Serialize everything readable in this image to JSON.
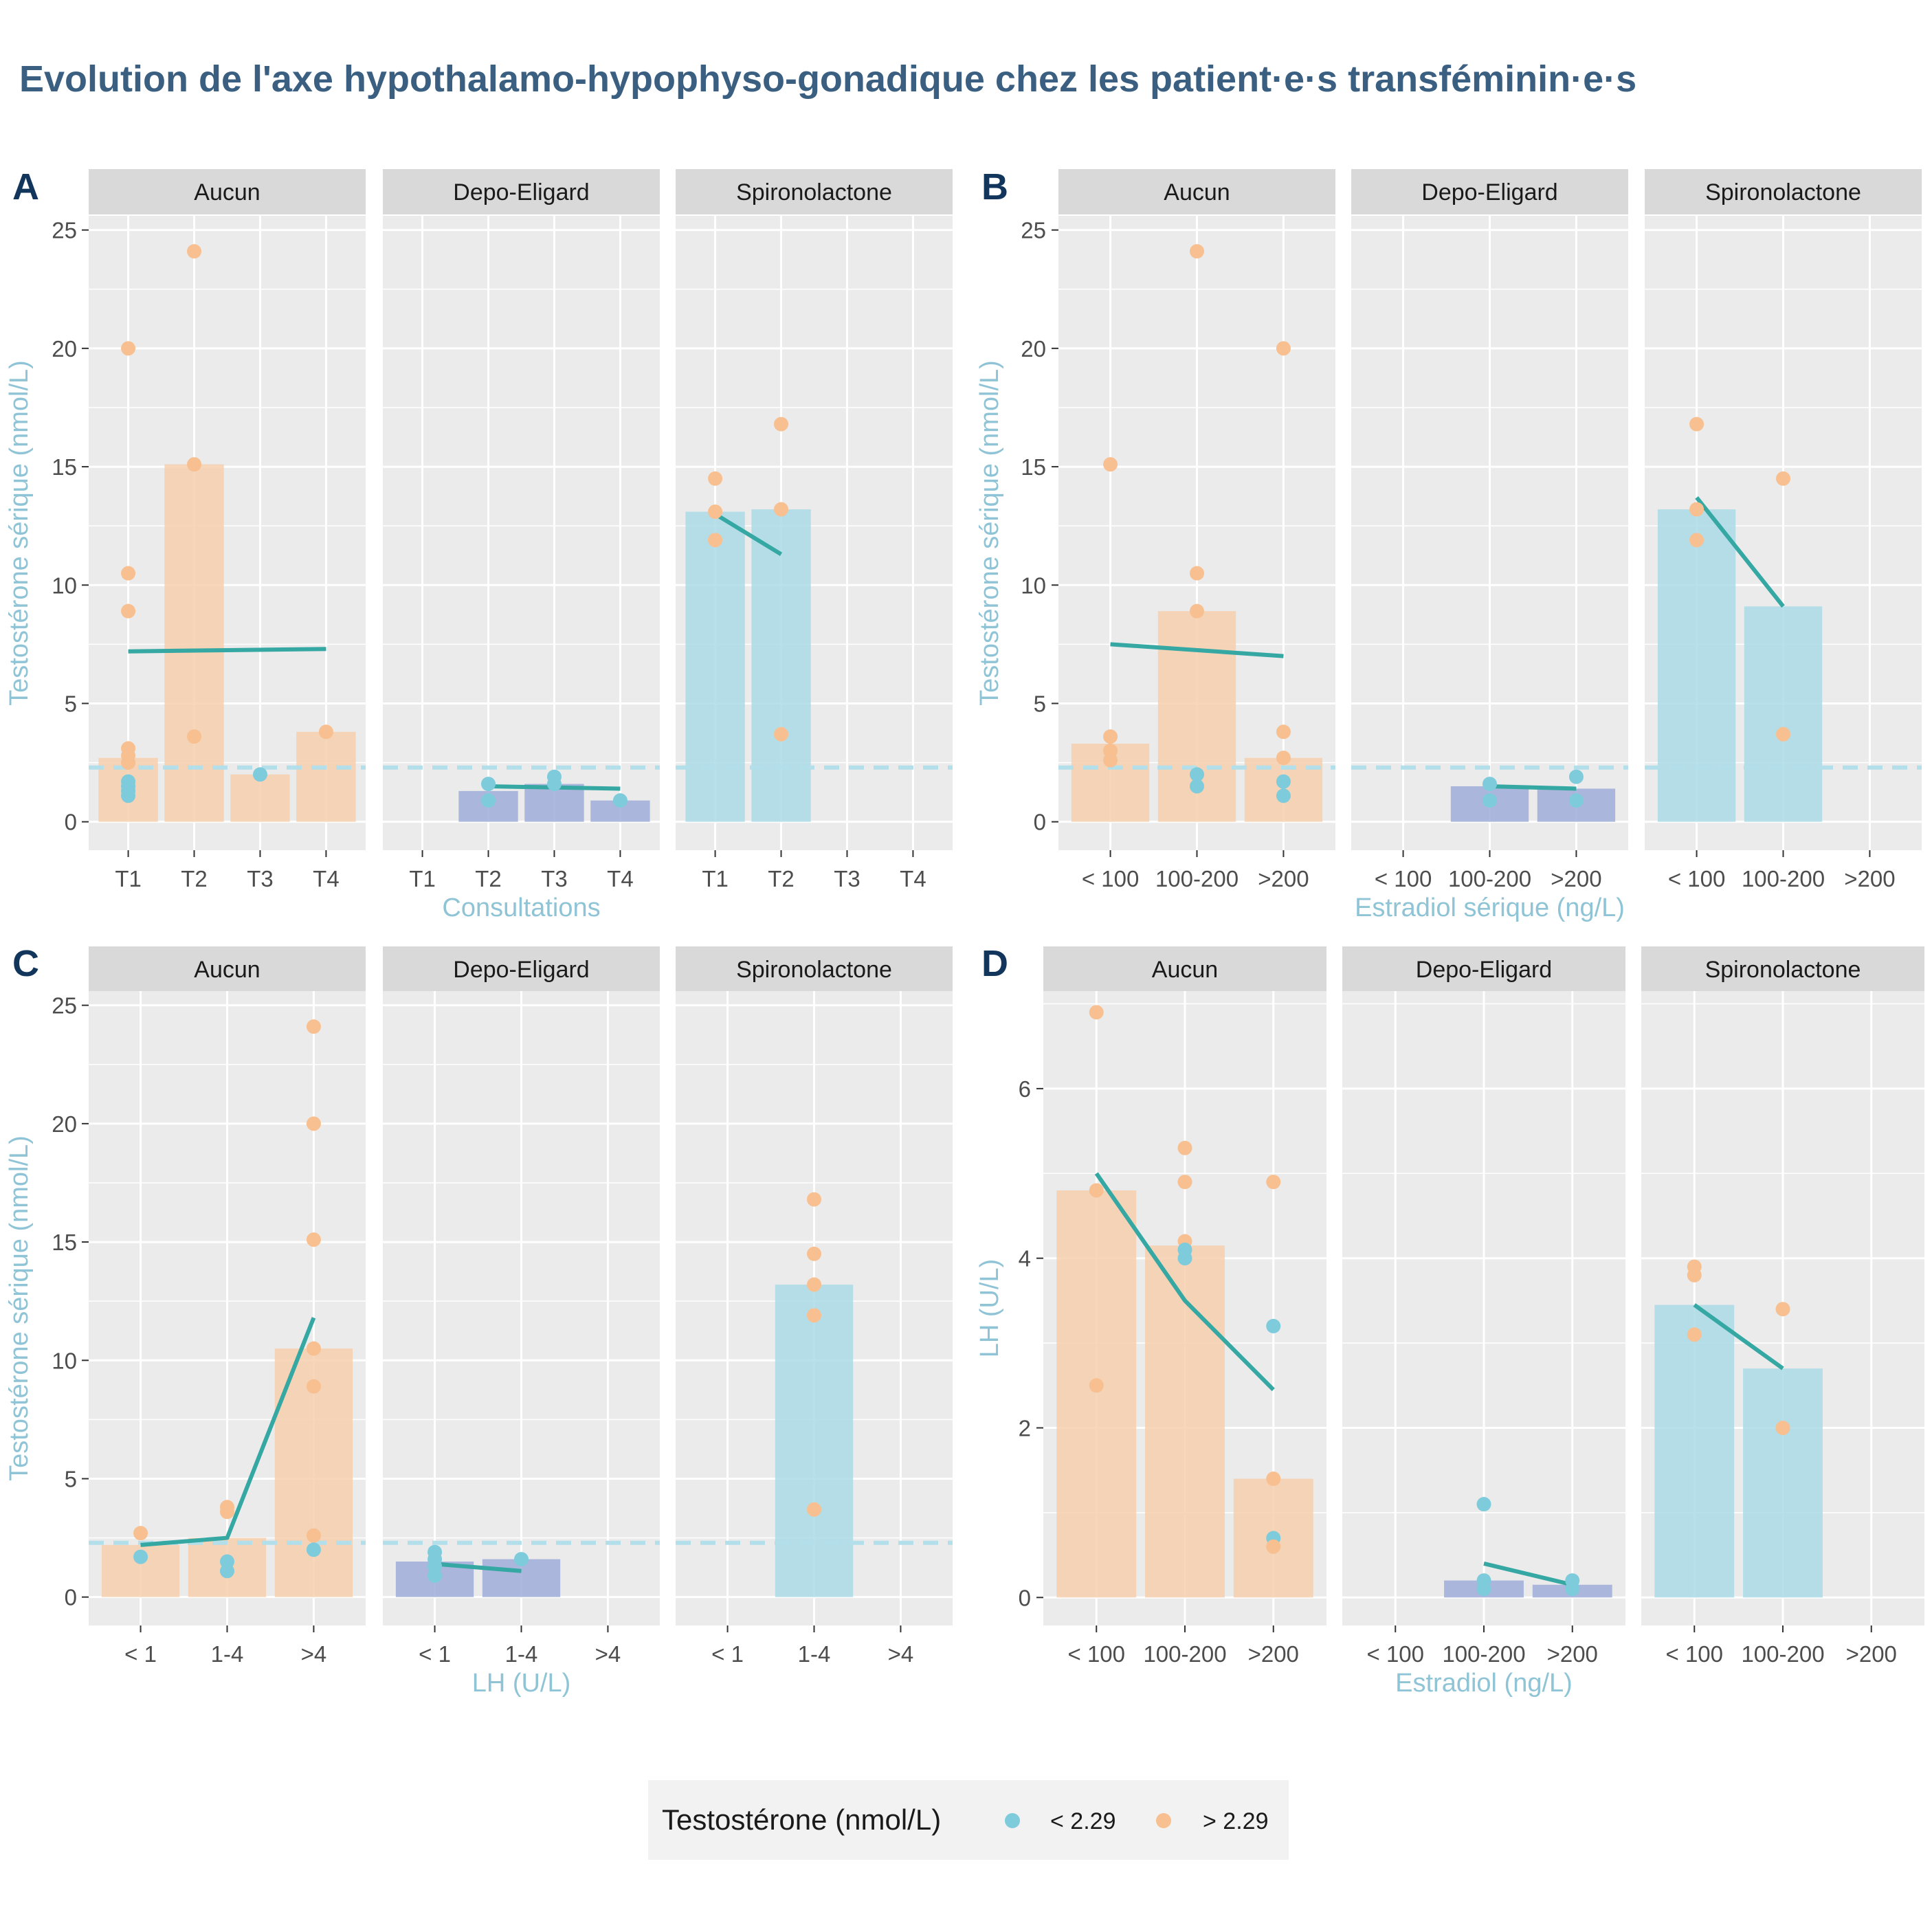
{
  "title": "Evolution de l'axe hypothalamo-hypophyso-gonadique chez les patient·e·s transféminin·e·s",
  "colors": {
    "low": "#7ecbdc",
    "high": "#f8c090",
    "bar_none": "#f6cfae",
    "bar_depo": "#9fadd8",
    "bar_spiro": "#abdae6",
    "trend": "#35a8a3",
    "threshold": "#b2dfe9",
    "panel_bg": "#ebebeb",
    "strip_bg": "#d9d9d9",
    "title": "#3a5f80",
    "axis_title": "#8fc4d6"
  },
  "legend": {
    "title": "Testostérone (nmol/L)",
    "items": [
      {
        "label": "< 2.29",
        "color": "#7ecbdc"
      },
      {
        "label": "> 2.29",
        "color": "#f8c090"
      }
    ]
  },
  "chart_data": [
    {
      "id": "A",
      "letter": "A",
      "type": "bar+scatter+line",
      "xlabel": "Consultations",
      "ylabel": "Testostérone sérique (nmol/L)",
      "categories": [
        "T1",
        "T2",
        "T3",
        "T4"
      ],
      "ylim": [
        -1.2,
        25.6
      ],
      "yticks": [
        0,
        5,
        10,
        15,
        20,
        25
      ],
      "threshold": 2.29,
      "facets": [
        {
          "name": "Aucun",
          "bars": [
            {
              "x": "T1",
              "value": 2.7
            },
            {
              "x": "T2",
              "value": 15.1
            },
            {
              "x": "T3",
              "value": 2.0
            },
            {
              "x": "T4",
              "value": 3.8
            }
          ],
          "points": [
            {
              "x": "T1",
              "y": 20.0,
              "group": "high"
            },
            {
              "x": "T1",
              "y": 10.5,
              "group": "high"
            },
            {
              "x": "T1",
              "y": 8.9,
              "group": "high"
            },
            {
              "x": "T1",
              "y": 3.1,
              "group": "high"
            },
            {
              "x": "T1",
              "y": 2.8,
              "group": "high"
            },
            {
              "x": "T1",
              "y": 2.5,
              "group": "high"
            },
            {
              "x": "T1",
              "y": 1.7,
              "group": "low"
            },
            {
              "x": "T1",
              "y": 1.5,
              "group": "low"
            },
            {
              "x": "T1",
              "y": 1.3,
              "group": "low"
            },
            {
              "x": "T1",
              "y": 1.1,
              "group": "low"
            },
            {
              "x": "T2",
              "y": 24.1,
              "group": "high"
            },
            {
              "x": "T2",
              "y": 15.1,
              "group": "high"
            },
            {
              "x": "T2",
              "y": 3.6,
              "group": "high"
            },
            {
              "x": "T3",
              "y": 2.0,
              "group": "low"
            },
            {
              "x": "T4",
              "y": 3.8,
              "group": "high"
            }
          ],
          "trend": [
            {
              "x": "T1",
              "y": 7.2
            },
            {
              "x": "T4",
              "y": 7.3
            }
          ]
        },
        {
          "name": "Depo-Eligard",
          "bars": [
            {
              "x": "T2",
              "value": 1.3
            },
            {
              "x": "T3",
              "value": 1.6
            },
            {
              "x": "T4",
              "value": 0.9
            }
          ],
          "points": [
            {
              "x": "T2",
              "y": 1.6,
              "group": "low"
            },
            {
              "x": "T2",
              "y": 0.9,
              "group": "low"
            },
            {
              "x": "T3",
              "y": 1.9,
              "group": "low"
            },
            {
              "x": "T3",
              "y": 1.6,
              "group": "low"
            },
            {
              "x": "T4",
              "y": 0.9,
              "group": "low"
            }
          ],
          "trend": [
            {
              "x": "T2",
              "y": 1.5
            },
            {
              "x": "T4",
              "y": 1.4
            }
          ]
        },
        {
          "name": "Spironolactone",
          "bars": [
            {
              "x": "T1",
              "value": 13.1
            },
            {
              "x": "T2",
              "value": 13.2
            }
          ],
          "points": [
            {
              "x": "T1",
              "y": 14.5,
              "group": "high"
            },
            {
              "x": "T1",
              "y": 13.1,
              "group": "high"
            },
            {
              "x": "T1",
              "y": 11.9,
              "group": "high"
            },
            {
              "x": "T2",
              "y": 16.8,
              "group": "high"
            },
            {
              "x": "T2",
              "y": 13.2,
              "group": "high"
            },
            {
              "x": "T2",
              "y": 3.7,
              "group": "high"
            }
          ],
          "trend": [
            {
              "x": "T1",
              "y": 13.0
            },
            {
              "x": "T2",
              "y": 11.3
            }
          ]
        }
      ]
    },
    {
      "id": "B",
      "letter": "B",
      "type": "bar+scatter+line",
      "xlabel": "Estradiol sérique (ng/L)",
      "ylabel": "Testostérone sérique (nmol/L)",
      "categories": [
        "< 100",
        "100-200",
        ">200"
      ],
      "ylim": [
        -1.2,
        25.6
      ],
      "yticks": [
        0,
        5,
        10,
        15,
        20,
        25
      ],
      "threshold": 2.29,
      "facets": [
        {
          "name": "Aucun",
          "bars": [
            {
              "x": "< 100",
              "value": 3.3
            },
            {
              "x": "100-200",
              "value": 8.9
            },
            {
              "x": ">200",
              "value": 2.7
            }
          ],
          "points": [
            {
              "x": "< 100",
              "y": 15.1,
              "group": "high"
            },
            {
              "x": "< 100",
              "y": 3.6,
              "group": "high"
            },
            {
              "x": "< 100",
              "y": 3.0,
              "group": "high"
            },
            {
              "x": "< 100",
              "y": 2.6,
              "group": "high"
            },
            {
              "x": "100-200",
              "y": 24.1,
              "group": "high"
            },
            {
              "x": "100-200",
              "y": 10.5,
              "group": "high"
            },
            {
              "x": "100-200",
              "y": 8.9,
              "group": "high"
            },
            {
              "x": "100-200",
              "y": 2.0,
              "group": "low"
            },
            {
              "x": "100-200",
              "y": 1.5,
              "group": "low"
            },
            {
              "x": ">200",
              "y": 20.0,
              "group": "high"
            },
            {
              "x": ">200",
              "y": 3.8,
              "group": "high"
            },
            {
              "x": ">200",
              "y": 2.7,
              "group": "high"
            },
            {
              "x": ">200",
              "y": 1.7,
              "group": "low"
            },
            {
              "x": ">200",
              "y": 1.1,
              "group": "low"
            }
          ],
          "trend": [
            {
              "x": "< 100",
              "y": 7.5
            },
            {
              "x": ">200",
              "y": 7.0
            }
          ]
        },
        {
          "name": "Depo-Eligard",
          "bars": [
            {
              "x": "100-200",
              "value": 1.5
            },
            {
              "x": ">200",
              "value": 1.4
            }
          ],
          "points": [
            {
              "x": "100-200",
              "y": 1.6,
              "group": "low"
            },
            {
              "x": "100-200",
              "y": 0.9,
              "group": "low"
            },
            {
              "x": ">200",
              "y": 1.9,
              "group": "low"
            },
            {
              "x": ">200",
              "y": 0.9,
              "group": "low"
            }
          ],
          "trend": [
            {
              "x": "100-200",
              "y": 1.5
            },
            {
              "x": ">200",
              "y": 1.4
            }
          ]
        },
        {
          "name": "Spironolactone",
          "bars": [
            {
              "x": "< 100",
              "value": 13.2
            },
            {
              "x": "100-200",
              "value": 9.1
            }
          ],
          "points": [
            {
              "x": "< 100",
              "y": 16.8,
              "group": "high"
            },
            {
              "x": "< 100",
              "y": 13.2,
              "group": "high"
            },
            {
              "x": "< 100",
              "y": 11.9,
              "group": "high"
            },
            {
              "x": "100-200",
              "y": 14.5,
              "group": "high"
            },
            {
              "x": "100-200",
              "y": 3.7,
              "group": "high"
            }
          ],
          "trend": [
            {
              "x": "< 100",
              "y": 13.7
            },
            {
              "x": "100-200",
              "y": 9.1
            }
          ]
        }
      ]
    },
    {
      "id": "C",
      "letter": "C",
      "type": "bar+scatter+line",
      "xlabel": "LH (U/L)",
      "ylabel": "Testostérone sérique (nmol/L)",
      "categories": [
        "< 1",
        "1-4",
        ">4"
      ],
      "ylim": [
        -1.2,
        25.6
      ],
      "yticks": [
        0,
        5,
        10,
        15,
        20,
        25
      ],
      "threshold": 2.29,
      "facets": [
        {
          "name": "Aucun",
          "bars": [
            {
              "x": "< 1",
              "value": 2.2
            },
            {
              "x": "1-4",
              "value": 2.5
            },
            {
              "x": ">4",
              "value": 10.5
            }
          ],
          "points": [
            {
              "x": "< 1",
              "y": 2.7,
              "group": "high"
            },
            {
              "x": "< 1",
              "y": 1.7,
              "group": "low"
            },
            {
              "x": "1-4",
              "y": 3.8,
              "group": "high"
            },
            {
              "x": "1-4",
              "y": 3.6,
              "group": "high"
            },
            {
              "x": "1-4",
              "y": 1.5,
              "group": "low"
            },
            {
              "x": "1-4",
              "y": 1.1,
              "group": "low"
            },
            {
              "x": ">4",
              "y": 24.1,
              "group": "high"
            },
            {
              "x": ">4",
              "y": 20.0,
              "group": "high"
            },
            {
              "x": ">4",
              "y": 15.1,
              "group": "high"
            },
            {
              "x": ">4",
              "y": 10.5,
              "group": "high"
            },
            {
              "x": ">4",
              "y": 8.9,
              "group": "high"
            },
            {
              "x": ">4",
              "y": 2.6,
              "group": "high"
            },
            {
              "x": ">4",
              "y": 2.0,
              "group": "low"
            }
          ],
          "trend": [
            {
              "x": "< 1",
              "y": 2.2
            },
            {
              "x": "1-4",
              "y": 2.5
            },
            {
              "x": ">4",
              "y": 11.8
            }
          ]
        },
        {
          "name": "Depo-Eligard",
          "bars": [
            {
              "x": "< 1",
              "value": 1.5
            },
            {
              "x": "1-4",
              "value": 1.6
            }
          ],
          "points": [
            {
              "x": "< 1",
              "y": 1.9,
              "group": "low"
            },
            {
              "x": "< 1",
              "y": 1.6,
              "group": "low"
            },
            {
              "x": "< 1",
              "y": 1.3,
              "group": "low"
            },
            {
              "x": "< 1",
              "y": 0.9,
              "group": "low"
            },
            {
              "x": "1-4",
              "y": 1.6,
              "group": "low"
            }
          ],
          "trend": [
            {
              "x": "< 1",
              "y": 1.4
            },
            {
              "x": "1-4",
              "y": 1.1
            }
          ]
        },
        {
          "name": "Spironolactone",
          "bars": [
            {
              "x": "1-4",
              "value": 13.2
            }
          ],
          "points": [
            {
              "x": "1-4",
              "y": 16.8,
              "group": "high"
            },
            {
              "x": "1-4",
              "y": 14.5,
              "group": "high"
            },
            {
              "x": "1-4",
              "y": 13.2,
              "group": "high"
            },
            {
              "x": "1-4",
              "y": 11.9,
              "group": "high"
            },
            {
              "x": "1-4",
              "y": 3.7,
              "group": "high"
            }
          ],
          "trend": []
        }
      ]
    },
    {
      "id": "D",
      "letter": "D",
      "type": "bar+scatter+line",
      "xlabel": "Estradiol (ng/L)",
      "ylabel": "LH (U/L)",
      "categories": [
        "< 100",
        "100-200",
        ">200"
      ],
      "ylim": [
        -0.33,
        7.15
      ],
      "yticks": [
        0,
        2,
        4,
        6
      ],
      "threshold": null,
      "facets": [
        {
          "name": "Aucun",
          "bars": [
            {
              "x": "< 100",
              "value": 4.8
            },
            {
              "x": "100-200",
              "value": 4.15
            },
            {
              "x": ">200",
              "value": 1.4
            }
          ],
          "points": [
            {
              "x": "< 100",
              "y": 6.9,
              "group": "high"
            },
            {
              "x": "< 100",
              "y": 4.8,
              "group": "high"
            },
            {
              "x": "< 100",
              "y": 2.5,
              "group": "high"
            },
            {
              "x": "100-200",
              "y": 5.3,
              "group": "high"
            },
            {
              "x": "100-200",
              "y": 4.9,
              "group": "high"
            },
            {
              "x": "100-200",
              "y": 4.2,
              "group": "high"
            },
            {
              "x": "100-200",
              "y": 4.1,
              "group": "low"
            },
            {
              "x": "100-200",
              "y": 4.0,
              "group": "low"
            },
            {
              "x": ">200",
              "y": 4.9,
              "group": "high"
            },
            {
              "x": ">200",
              "y": 3.2,
              "group": "low"
            },
            {
              "x": ">200",
              "y": 1.4,
              "group": "high"
            },
            {
              "x": ">200",
              "y": 0.7,
              "group": "low"
            },
            {
              "x": ">200",
              "y": 0.6,
              "group": "high"
            }
          ],
          "trend": [
            {
              "x": "< 100",
              "y": 5.0
            },
            {
              "x": "100-200",
              "y": 3.5
            },
            {
              "x": ">200",
              "y": 2.45
            }
          ]
        },
        {
          "name": "Depo-Eligard",
          "bars": [
            {
              "x": "100-200",
              "value": 0.2
            },
            {
              "x": ">200",
              "value": 0.15
            }
          ],
          "points": [
            {
              "x": "100-200",
              "y": 1.1,
              "group": "low"
            },
            {
              "x": "100-200",
              "y": 0.2,
              "group": "low"
            },
            {
              "x": "100-200",
              "y": 0.1,
              "group": "low"
            },
            {
              "x": ">200",
              "y": 0.2,
              "group": "low"
            },
            {
              "x": ">200",
              "y": 0.1,
              "group": "low"
            }
          ],
          "trend": [
            {
              "x": "100-200",
              "y": 0.4
            },
            {
              "x": ">200",
              "y": 0.15
            }
          ]
        },
        {
          "name": "Spironolactone",
          "bars": [
            {
              "x": "< 100",
              "value": 3.45
            },
            {
              "x": "100-200",
              "value": 2.7
            }
          ],
          "points": [
            {
              "x": "< 100",
              "y": 3.9,
              "group": "high"
            },
            {
              "x": "< 100",
              "y": 3.8,
              "group": "high"
            },
            {
              "x": "< 100",
              "y": 3.1,
              "group": "high"
            },
            {
              "x": "100-200",
              "y": 3.4,
              "group": "high"
            },
            {
              "x": "100-200",
              "y": 2.0,
              "group": "high"
            }
          ],
          "trend": [
            {
              "x": "< 100",
              "y": 3.45
            },
            {
              "x": "100-200",
              "y": 2.7
            }
          ]
        }
      ]
    }
  ]
}
